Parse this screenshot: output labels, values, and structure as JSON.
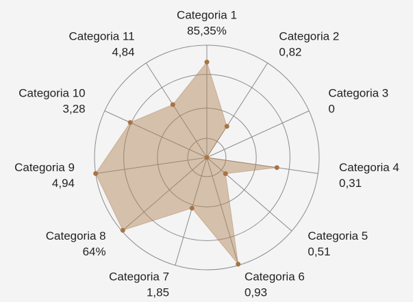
{
  "chart_data": {
    "type": "radar",
    "categories": [
      "Categoria 1",
      "Categoria 2",
      "Categoria 3",
      "Categoria 4",
      "Categoria 5",
      "Categoria 6",
      "Categoria 7",
      "Categoria 8",
      "Categoria 9",
      "Categoria 10",
      "Categoria 11"
    ],
    "point_labels": [
      "85,35%",
      "0,82",
      "0",
      "0,31",
      "0,51",
      "0,93",
      "1,85",
      "64%",
      "4,94",
      "3,28",
      "4,84"
    ],
    "values": [
      85,
      33,
      0,
      63,
      22,
      99,
      47,
      99,
      100,
      75,
      56
    ],
    "rlim": [
      0,
      100
    ],
    "rticks": [
      17,
      44,
      74,
      100
    ],
    "grid": true,
    "color": "#a87442",
    "fill": "rgba(176,128,84,0.45)"
  }
}
